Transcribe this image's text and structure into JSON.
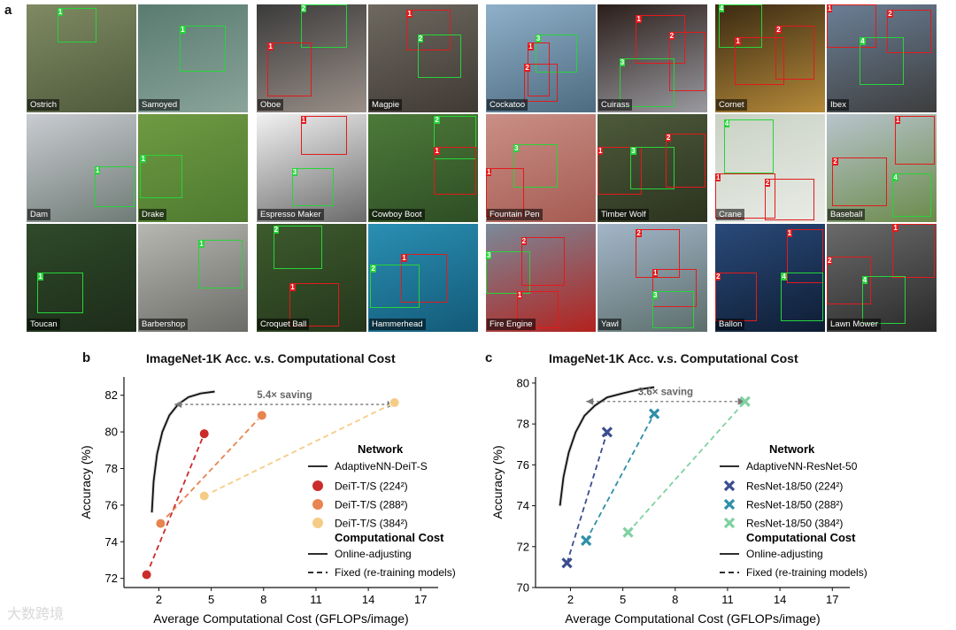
{
  "panel_labels": {
    "a": "a",
    "b": "b",
    "c": "c"
  },
  "panel_a": {
    "groups": [
      {
        "tiles": [
          {
            "label": "Ostrich",
            "bg": [
              "#7f8a63",
              "#4f5a3c"
            ],
            "boxes": [
              {
                "c": "g",
                "n": "1"
              }
            ]
          },
          {
            "label": "Samoyed",
            "bg": [
              "#5a7b70",
              "#8aa49a"
            ],
            "boxes": [
              {
                "c": "g",
                "n": "1"
              }
            ]
          },
          {
            "label": "Dam",
            "bg": [
              "#c9ccd1",
              "#6f7b76"
            ],
            "boxes": [
              {
                "c": "g",
                "n": "1"
              }
            ]
          },
          {
            "label": "Drake",
            "bg": [
              "#6f9a43",
              "#4d7a2f"
            ],
            "boxes": [
              {
                "c": "g",
                "n": "1"
              }
            ]
          },
          {
            "label": "Toucan",
            "bg": [
              "#2f4a2a",
              "#1d2c1a"
            ],
            "boxes": [
              {
                "c": "g",
                "n": "1"
              }
            ]
          },
          {
            "label": "Barbershop",
            "bg": [
              "#b7b7b2",
              "#6b6b67"
            ],
            "boxes": [
              {
                "c": "g",
                "n": "1"
              }
            ]
          }
        ]
      },
      {
        "tiles": [
          {
            "label": "Oboe",
            "bg": [
              "#3b3b3b",
              "#9a8f88"
            ],
            "boxes": [
              {
                "c": "g",
                "n": "2"
              },
              {
                "c": "r",
                "n": "1"
              }
            ]
          },
          {
            "label": "Magpie",
            "bg": [
              "#6d6860",
              "#3f3a33"
            ],
            "boxes": [
              {
                "c": "r",
                "n": "1"
              },
              {
                "c": "g",
                "n": "2"
              }
            ]
          },
          {
            "label": "Espresso Maker",
            "bg": [
              "#f1f1f1",
              "#6a6a6a"
            ],
            "boxes": [
              {
                "c": "r",
                "n": "1"
              },
              {
                "c": "g",
                "n": "3"
              }
            ]
          },
          {
            "label": "Cowboy Boot",
            "bg": [
              "#4d7a3a",
              "#2e4d24"
            ],
            "boxes": [
              {
                "c": "g",
                "n": "2"
              },
              {
                "c": "r",
                "n": "1"
              }
            ]
          },
          {
            "label": "Croquet Ball",
            "bg": [
              "#3d5a2d",
              "#25371c"
            ],
            "boxes": [
              {
                "c": "g",
                "n": "2"
              },
              {
                "c": "r",
                "n": "1"
              }
            ]
          },
          {
            "label": "Hammerhead",
            "bg": [
              "#2a8fb3",
              "#135a78"
            ],
            "boxes": [
              {
                "c": "r",
                "n": "1"
              },
              {
                "c": "g",
                "n": "2"
              }
            ]
          }
        ]
      },
      {
        "tiles": [
          {
            "label": "Cockatoo",
            "bg": [
              "#8fb0c9",
              "#4d6b80"
            ],
            "boxes": [
              {
                "c": "g",
                "n": "3"
              },
              {
                "c": "r",
                "n": "1"
              },
              {
                "c": "r",
                "n": "2"
              }
            ]
          },
          {
            "label": "Cuirass",
            "bg": [
              "#2b1e1a",
              "#9a9aa0"
            ],
            "boxes": [
              {
                "c": "r",
                "n": "1"
              },
              {
                "c": "r",
                "n": "2"
              },
              {
                "c": "g",
                "n": "3"
              }
            ]
          },
          {
            "label": "Fountain Pen",
            "bg": [
              "#c98f86",
              "#a55b52"
            ],
            "boxes": [
              {
                "c": "g",
                "n": "3"
              },
              {
                "c": "r",
                "n": "1"
              }
            ]
          },
          {
            "label": "Timber Wolf",
            "bg": [
              "#4d5a3a",
              "#2c331f"
            ],
            "boxes": [
              {
                "c": "r",
                "n": "1"
              },
              {
                "c": "g",
                "n": "3"
              },
              {
                "c": "r",
                "n": "2"
              }
            ]
          },
          {
            "label": "Fire Engine",
            "bg": [
              "#7a8a9a",
              "#b3221e"
            ],
            "boxes": [
              {
                "c": "g",
                "n": "3"
              },
              {
                "c": "r",
                "n": "2"
              },
              {
                "c": "r",
                "n": "1"
              }
            ]
          },
          {
            "label": "Yawl",
            "bg": [
              "#a3b6c9",
              "#5c6e6b"
            ],
            "boxes": [
              {
                "c": "r",
                "n": "2"
              },
              {
                "c": "r",
                "n": "1"
              },
              {
                "c": "g",
                "n": "3"
              }
            ]
          }
        ]
      },
      {
        "tiles": [
          {
            "label": "Cornet",
            "bg": [
              "#3a2a12",
              "#b58a3a"
            ],
            "boxes": [
              {
                "c": "g",
                "n": "4"
              },
              {
                "c": "r",
                "n": "1"
              },
              {
                "c": "r",
                "n": "2"
              }
            ]
          },
          {
            "label": "Ibex",
            "bg": [
              "#6b7f96",
              "#3d3d3d"
            ],
            "boxes": [
              {
                "c": "r",
                "n": "1"
              },
              {
                "c": "r",
                "n": "2"
              },
              {
                "c": "g",
                "n": "4"
              }
            ]
          },
          {
            "label": "Crane",
            "bg": [
              "#c9d1c4",
              "#e9ece6"
            ],
            "boxes": [
              {
                "c": "g",
                "n": "4"
              },
              {
                "c": "r",
                "n": "1"
              },
              {
                "c": "r",
                "n": "2"
              }
            ]
          },
          {
            "label": "Baseball",
            "bg": [
              "#b8c4cc",
              "#6b8a4a"
            ],
            "boxes": [
              {
                "c": "r",
                "n": "1"
              },
              {
                "c": "r",
                "n": "2"
              },
              {
                "c": "g",
                "n": "4"
              }
            ]
          },
          {
            "label": "Ballon",
            "bg": [
              "#2a4a7a",
              "#0e1d33"
            ],
            "boxes": [
              {
                "c": "r",
                "n": "1"
              },
              {
                "c": "r",
                "n": "2"
              },
              {
                "c": "g",
                "n": "4"
              }
            ]
          },
          {
            "label": "Lawn Mower",
            "bg": [
              "#6a6a6a",
              "#2a2a2a"
            ],
            "boxes": [
              {
                "c": "r",
                "n": "1"
              },
              {
                "c": "r",
                "n": "2"
              },
              {
                "c": "g",
                "n": "4"
              }
            ]
          }
        ]
      }
    ]
  },
  "chart_data": [
    {
      "type": "line",
      "title": "ImageNet-1K Acc. v.s. Computational Cost",
      "xlabel": "Average Computational Cost (GFLOPs/image)",
      "ylabel": "Accuracy (%)",
      "xticks": [
        2,
        5,
        8,
        11,
        14,
        17
      ],
      "yticks": [
        72,
        74,
        76,
        78,
        80,
        82
      ],
      "xlim": [
        0,
        18
      ],
      "ylim": [
        71.5,
        83
      ],
      "annotation": "5.4× saving",
      "annotation_arrow": {
        "from": [
          15.5,
          81.5
        ],
        "to": [
          2.9,
          81.5
        ]
      },
      "online_curve": {
        "name": "AdaptiveNN-DeiT-S",
        "x": [
          1.6,
          1.7,
          1.9,
          2.2,
          2.6,
          3.1,
          3.7,
          4.4,
          5.2
        ],
        "y": [
          75.6,
          77.3,
          78.8,
          80.0,
          80.9,
          81.5,
          81.9,
          82.1,
          82.2
        ],
        "color": "#111111"
      },
      "series": [
        {
          "name": "DeiT-T/S (224²)",
          "marker": "o",
          "color": "#cc2b2b",
          "x": [
            1.3,
            4.6
          ],
          "y": [
            72.2,
            79.9
          ]
        },
        {
          "name": "DeiT-T/S (288²)",
          "marker": "o",
          "color": "#e8844f",
          "x": [
            2.1,
            7.9
          ],
          "y": [
            75.0,
            80.9
          ]
        },
        {
          "name": "DeiT-T/S (384²)",
          "marker": "o",
          "color": "#f5cc86",
          "x": [
            4.6,
            15.5
          ],
          "y": [
            76.5,
            81.6
          ]
        }
      ],
      "legend": {
        "position": "right",
        "network_title": "Network",
        "cost_title": "Computational Cost",
        "online_label": "Online-adjusting",
        "fixed_label": "Fixed (re-training models)"
      }
    },
    {
      "type": "line",
      "title": "ImageNet-1K Acc. v.s. Computational Cost",
      "xlabel": "Average Computational Cost (GFLOPs/image)",
      "ylabel": "Accuracy (%)",
      "xticks": [
        2,
        5,
        8,
        11,
        14,
        17
      ],
      "yticks": [
        70,
        72,
        74,
        76,
        78,
        80
      ],
      "xlim": [
        0,
        18
      ],
      "ylim": [
        70,
        80.3
      ],
      "annotation": "3.6× saving",
      "annotation_arrow": {
        "from": [
          12.0,
          79.1
        ],
        "to": [
          2.9,
          79.1
        ]
      },
      "online_curve": {
        "name": "AdaptiveNN-ResNet-50",
        "x": [
          1.4,
          1.6,
          1.9,
          2.3,
          2.8,
          3.4,
          4.1,
          5.0,
          6.0,
          6.8
        ],
        "y": [
          74.0,
          75.4,
          76.6,
          77.6,
          78.4,
          78.9,
          79.3,
          79.5,
          79.7,
          79.8
        ],
        "color": "#111111"
      },
      "series": [
        {
          "name": "ResNet-18/50 (224²)",
          "marker": "x",
          "color": "#3a4d8f",
          "x": [
            1.8,
            4.1
          ],
          "y": [
            71.2,
            77.6
          ]
        },
        {
          "name": "ResNet-18/50 (288²)",
          "marker": "x",
          "color": "#2e8fa8",
          "x": [
            2.9,
            6.8
          ],
          "y": [
            72.3,
            78.5
          ]
        },
        {
          "name": "ResNet-18/50 (384²)",
          "marker": "x",
          "color": "#7fd1a1",
          "x": [
            5.3,
            12.0
          ],
          "y": [
            72.7,
            79.1
          ]
        }
      ],
      "legend": {
        "position": "right",
        "network_title": "Network",
        "cost_title": "Computational Cost",
        "online_label": "Online-adjusting",
        "fixed_label": "Fixed (re-training models)"
      }
    }
  ],
  "watermark": "大数跨境"
}
